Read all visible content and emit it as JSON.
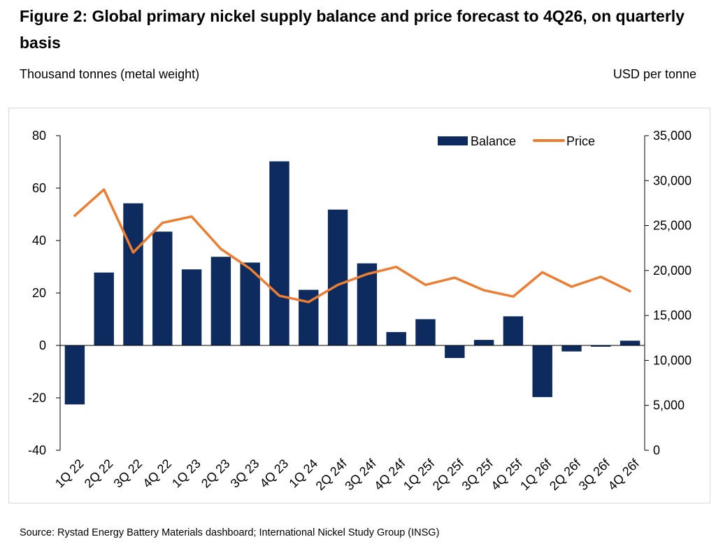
{
  "header": {
    "title": "Figure 2: Global primary nickel supply balance and price forecast to 4Q26, on quarterly basis",
    "left_unit": "Thousand tonnes (metal weight)",
    "right_unit": "USD per tonne"
  },
  "source": "Source: Rystad Energy Battery Materials dashboard; International Nickel Study Group (INSG)",
  "chart_data": {
    "type": "bar",
    "categories": [
      "1Q 22",
      "2Q 22",
      "3Q 22",
      "4Q 22",
      "1Q 23",
      "2Q 23",
      "3Q 23",
      "4Q 23",
      "1Q 24",
      "2Q 24f",
      "3Q 24f",
      "4Q 24f",
      "1Q 25f",
      "2Q 25f",
      "3Q 25f",
      "4Q 25f",
      "1Q 26f",
      "2Q 26f",
      "3Q 26f",
      "4Q 26f"
    ],
    "series": [
      {
        "name": "Balance",
        "type": "bar",
        "axis": "left",
        "color": "#0d2b5e",
        "values": [
          -22.5,
          27.8,
          54.2,
          43.4,
          29.0,
          33.8,
          31.6,
          70.2,
          21.2,
          51.8,
          31.3,
          5.1,
          10.0,
          -4.8,
          2.1,
          11.1,
          -19.7,
          -2.3,
          -0.5,
          1.8
        ]
      },
      {
        "name": "Price",
        "type": "line",
        "axis": "right",
        "color": "#ed7d31",
        "values": [
          26100,
          29000,
          22000,
          25300,
          26000,
          22400,
          20200,
          17200,
          16500,
          18400,
          19600,
          20400,
          18400,
          19200,
          17800,
          17100,
          19800,
          18200,
          19300,
          17700
        ]
      }
    ],
    "y_left": {
      "min": -40,
      "max": 80,
      "ticks": [
        "80",
        "60",
        "40",
        "20",
        "0",
        "-20",
        "-40"
      ],
      "tick_values": [
        80,
        60,
        40,
        20,
        0,
        -20,
        -40
      ]
    },
    "y_right": {
      "min": 0,
      "max": 35000,
      "ticks": [
        "35,000",
        "30,000",
        "25,000",
        "20,000",
        "15,000",
        "10,000",
        "5,000",
        "0"
      ],
      "tick_values": [
        35000,
        30000,
        25000,
        20000,
        15000,
        10000,
        5000,
        0
      ]
    },
    "legend_position": "top-right",
    "grid": false
  }
}
